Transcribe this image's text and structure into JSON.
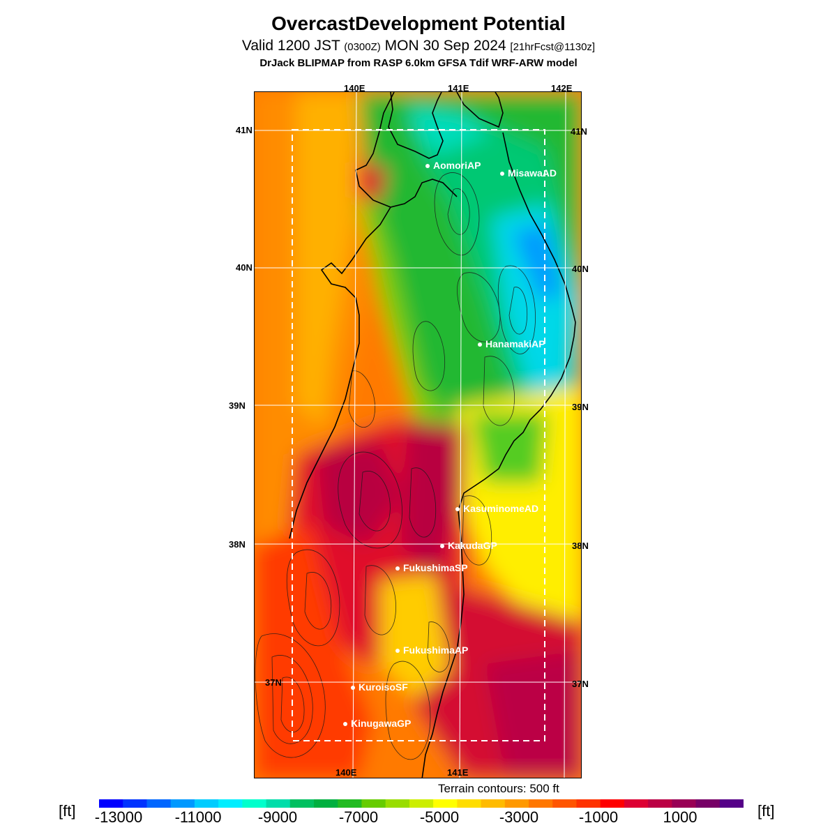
{
  "header": {
    "title": "OvercastDevelopment Potential",
    "subtitle_main_a": "Valid 1200 JST",
    "subtitle_small_a": "(0300Z)",
    "subtitle_main_b": "MON 30 Sep 2024",
    "subtitle_small_b": "[21hrFcst@1130z]",
    "model": "DrJack BLIPMAP from RASP 6.0km GFSA Tdif WRF-ARW model"
  },
  "map": {
    "lon_labels_top": [
      "140E",
      "141E",
      "142E"
    ],
    "lon_labels_bottom": [
      "140E",
      "141E"
    ],
    "lat_labels_left": [
      "41N",
      "40N",
      "39N",
      "38N",
      "37N"
    ],
    "lat_labels_right": [
      "41N",
      "40N",
      "39N",
      "38N",
      "37N"
    ],
    "stations": [
      {
        "name": "AomoriAP"
      },
      {
        "name": "MisawaAD"
      },
      {
        "name": "HanamakiAP"
      },
      {
        "name": "KasuminomeAD"
      },
      {
        "name": "KakudaGP"
      },
      {
        "name": "FukushimaSP"
      },
      {
        "name": "FukushimaAP"
      },
      {
        "name": "KuroisoSF"
      },
      {
        "name": "KinugawaGP"
      }
    ],
    "terrain_note": "Terrain contours: 500 ft"
  },
  "colorbar": {
    "unit_label": "[ft]",
    "tick_labels": [
      "-13000",
      "-11000",
      "-9000",
      "-7000",
      "-5000",
      "-3000",
      "-1000",
      "1000"
    ],
    "colors": [
      "#0000ff",
      "#0033ff",
      "#0066ff",
      "#0099ff",
      "#00ccff",
      "#00eeff",
      "#00ffcc",
      "#00ddaa",
      "#00c060",
      "#00b040",
      "#22bb22",
      "#66cc00",
      "#99dd00",
      "#ccee00",
      "#ffff00",
      "#ffdd00",
      "#ffbb00",
      "#ff9900",
      "#ff7700",
      "#ff5500",
      "#ff3300",
      "#ff0000",
      "#dd0033",
      "#bb0044",
      "#990055",
      "#770066",
      "#550088"
    ]
  }
}
